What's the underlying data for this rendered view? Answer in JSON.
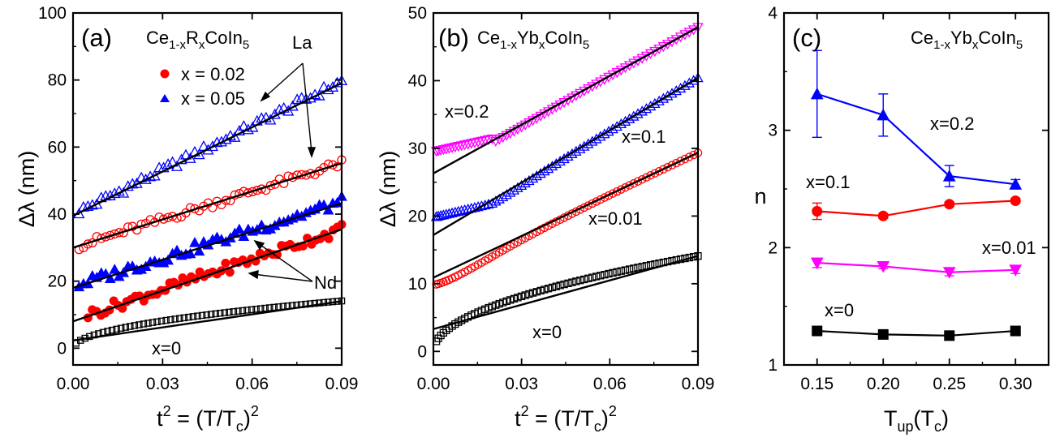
{
  "panels": [
    {
      "id": "a",
      "label": "(a)",
      "compound": {
        "main": "Ce",
        "sub1": "1-x",
        "mid": "R",
        "sub2": "x",
        "tail": "CoIn",
        "sub3": "5"
      },
      "legend": [
        {
          "marker": "circle",
          "text": "x = 0.02",
          "color": "#ff0000"
        },
        {
          "marker": "triangle",
          "text": "x = 0.05",
          "color": "#0000ff"
        }
      ],
      "annotations": {
        "la": "La",
        "nd": "Nd",
        "x0": "x=0"
      },
      "ylabel": "Δλ (nm)",
      "xlabel": {
        "pre": "t",
        "sup": "2",
        "mid": " = (T/T",
        "sub": "c",
        "close": ")",
        "sup2": "2"
      }
    },
    {
      "id": "b",
      "label": "(b)",
      "compound": {
        "main": "Ce",
        "sub1": "1-x",
        "mid": "Yb",
        "sub2": "x",
        "tail": "CoIn",
        "sub3": "5"
      },
      "annotations": {
        "x02": "x=0.2",
        "x01": "x=0.1",
        "x001": "x=0.01",
        "x0": "x=0"
      },
      "ylabel": "Δλ (nm)",
      "xlabel": {
        "pre": "t",
        "sup": "2",
        "mid": " = (T/T",
        "sub": "c",
        "close": ")",
        "sup2": "2"
      }
    },
    {
      "id": "c",
      "label": "(c)",
      "compound": {
        "main": "Ce",
        "sub1": "1-x",
        "mid": "Yb",
        "sub2": "x",
        "tail": "CoIn",
        "sub3": "5"
      },
      "annotations": {
        "x02": "x=0.2",
        "x01": "x=0.1",
        "x001": "x=0.01",
        "x0": "x=0"
      },
      "ylabel": "n",
      "xlabel": {
        "pre": "T",
        "sub": "up",
        "post": "(T",
        "sub2": "c",
        "close": ")"
      }
    }
  ],
  "chart_data": [
    {
      "type": "scatter",
      "panel": "a",
      "xlim": [
        0,
        0.09
      ],
      "ylim": [
        -5,
        100
      ],
      "xticks": [
        0.0,
        0.03,
        0.06,
        0.09
      ],
      "xtick_labels": [
        "0.00",
        "0.03",
        "0.06",
        "0.09"
      ],
      "yticks": [
        0,
        20,
        40,
        60,
        80,
        100
      ],
      "series": [
        {
          "marker": "triangle-open",
          "color": "#0000ff",
          "x_range": [
            0.002,
            0.09
          ],
          "curve": {
            "a": 40,
            "b": 440,
            "kind": "linear"
          },
          "fit": {
            "intercept": 39.5,
            "slope": 440
          }
        },
        {
          "marker": "circle-open",
          "color": "#ff0000",
          "x_range": [
            0.002,
            0.09
          ],
          "curve": {
            "a": 30,
            "b": 280,
            "kind": "linear"
          },
          "fit": {
            "intercept": 30,
            "slope": 280
          }
        },
        {
          "name": "x = 0.05",
          "marker": "triangle-filled",
          "color": "#0000ff",
          "x_range": [
            0.002,
            0.09
          ],
          "curve": {
            "a": 18.5,
            "b": 280,
            "kind": "linear"
          },
          "fit": {
            "intercept": 18,
            "slope": 280
          }
        },
        {
          "name": "x = 0.02",
          "marker": "circle-filled",
          "color": "#ff0000",
          "x_range": [
            0.005,
            0.09
          ],
          "curve": {
            "a": 8.5,
            "b": 300,
            "kind": "linear"
          },
          "fit": {
            "intercept": 8,
            "slope": 305
          }
        },
        {
          "marker": "square-open",
          "color": "#000000",
          "x_range": [
            0.001,
            0.09
          ],
          "curve": {
            "a": 0,
            "b": 47,
            "kind": "sqrt"
          },
          "fit": {
            "intercept": 2.3,
            "slope": 130
          }
        }
      ]
    },
    {
      "type": "scatter",
      "panel": "b",
      "xlim": [
        0,
        0.09
      ],
      "ylim": [
        -2,
        50
      ],
      "xticks": [
        0.0,
        0.03,
        0.06,
        0.09
      ],
      "xtick_labels": [
        "0.00",
        "0.03",
        "0.06",
        "0.09"
      ],
      "yticks": [
        0,
        10,
        20,
        30,
        40,
        50
      ],
      "series": [
        {
          "marker": "triangle-down-open",
          "color": "#ff00ff",
          "x_range": [
            0.001,
            0.09
          ],
          "curve": {
            "base": 29.5,
            "fit_i": 26.3,
            "fit_s": 240,
            "k": 0.012
          },
          "fit": {
            "intercept": 26.3,
            "slope": 240
          }
        },
        {
          "marker": "triangle-open",
          "color": "#0000ff",
          "x_range": [
            0.001,
            0.09
          ],
          "curve": {
            "base": 19.8,
            "fit_i": 17.2,
            "fit_s": 258,
            "k": 0.012
          },
          "fit": {
            "intercept": 17.2,
            "slope": 258
          }
        },
        {
          "marker": "circle-open",
          "color": "#ff0000",
          "x_range": [
            0.001,
            0.09
          ],
          "curve": {
            "base": 9.8,
            "fit_i": 10.9,
            "fit_s": 205,
            "k": 0.012
          },
          "fit": {
            "intercept": 10.9,
            "slope": 205
          }
        },
        {
          "marker": "square-open",
          "color": "#000000",
          "x_range": [
            0.001,
            0.09
          ],
          "curve": {
            "a": 0,
            "b": 47,
            "kind": "sqrt"
          },
          "fit": {
            "intercept": 3.3,
            "slope": 120
          }
        }
      ]
    },
    {
      "type": "line",
      "panel": "c",
      "xlim": [
        0.125,
        0.325
      ],
      "ylim": [
        1,
        4
      ],
      "xticks": [
        0.15,
        0.2,
        0.25,
        0.3
      ],
      "xtick_labels": [
        "0.15",
        "0.20",
        "0.25",
        "0.30"
      ],
      "yticks": [
        1,
        2,
        3,
        4
      ],
      "x": [
        0.15,
        0.2,
        0.25,
        0.3
      ],
      "series": [
        {
          "marker": "triangle-filled",
          "color": "#0000ff",
          "values": [
            3.31,
            3.13,
            2.61,
            2.54
          ],
          "errors": [
            0.37,
            0.18,
            0.09,
            0.04
          ]
        },
        {
          "marker": "circle-filled",
          "color": "#ff0000",
          "values": [
            2.31,
            2.27,
            2.37,
            2.4
          ],
          "errors": [
            0.07,
            0.02,
            0.02,
            0.02
          ]
        },
        {
          "marker": "triangle-down-filled",
          "color": "#ff00ff",
          "values": [
            1.87,
            1.84,
            1.79,
            1.81
          ],
          "errors": [
            0.04,
            0.02,
            0.03,
            0.03
          ]
        },
        {
          "marker": "square-filled",
          "color": "#000000",
          "values": [
            1.29,
            1.26,
            1.25,
            1.29
          ],
          "errors": [
            0.02,
            0.02,
            0.02,
            0.02
          ]
        }
      ]
    }
  ]
}
